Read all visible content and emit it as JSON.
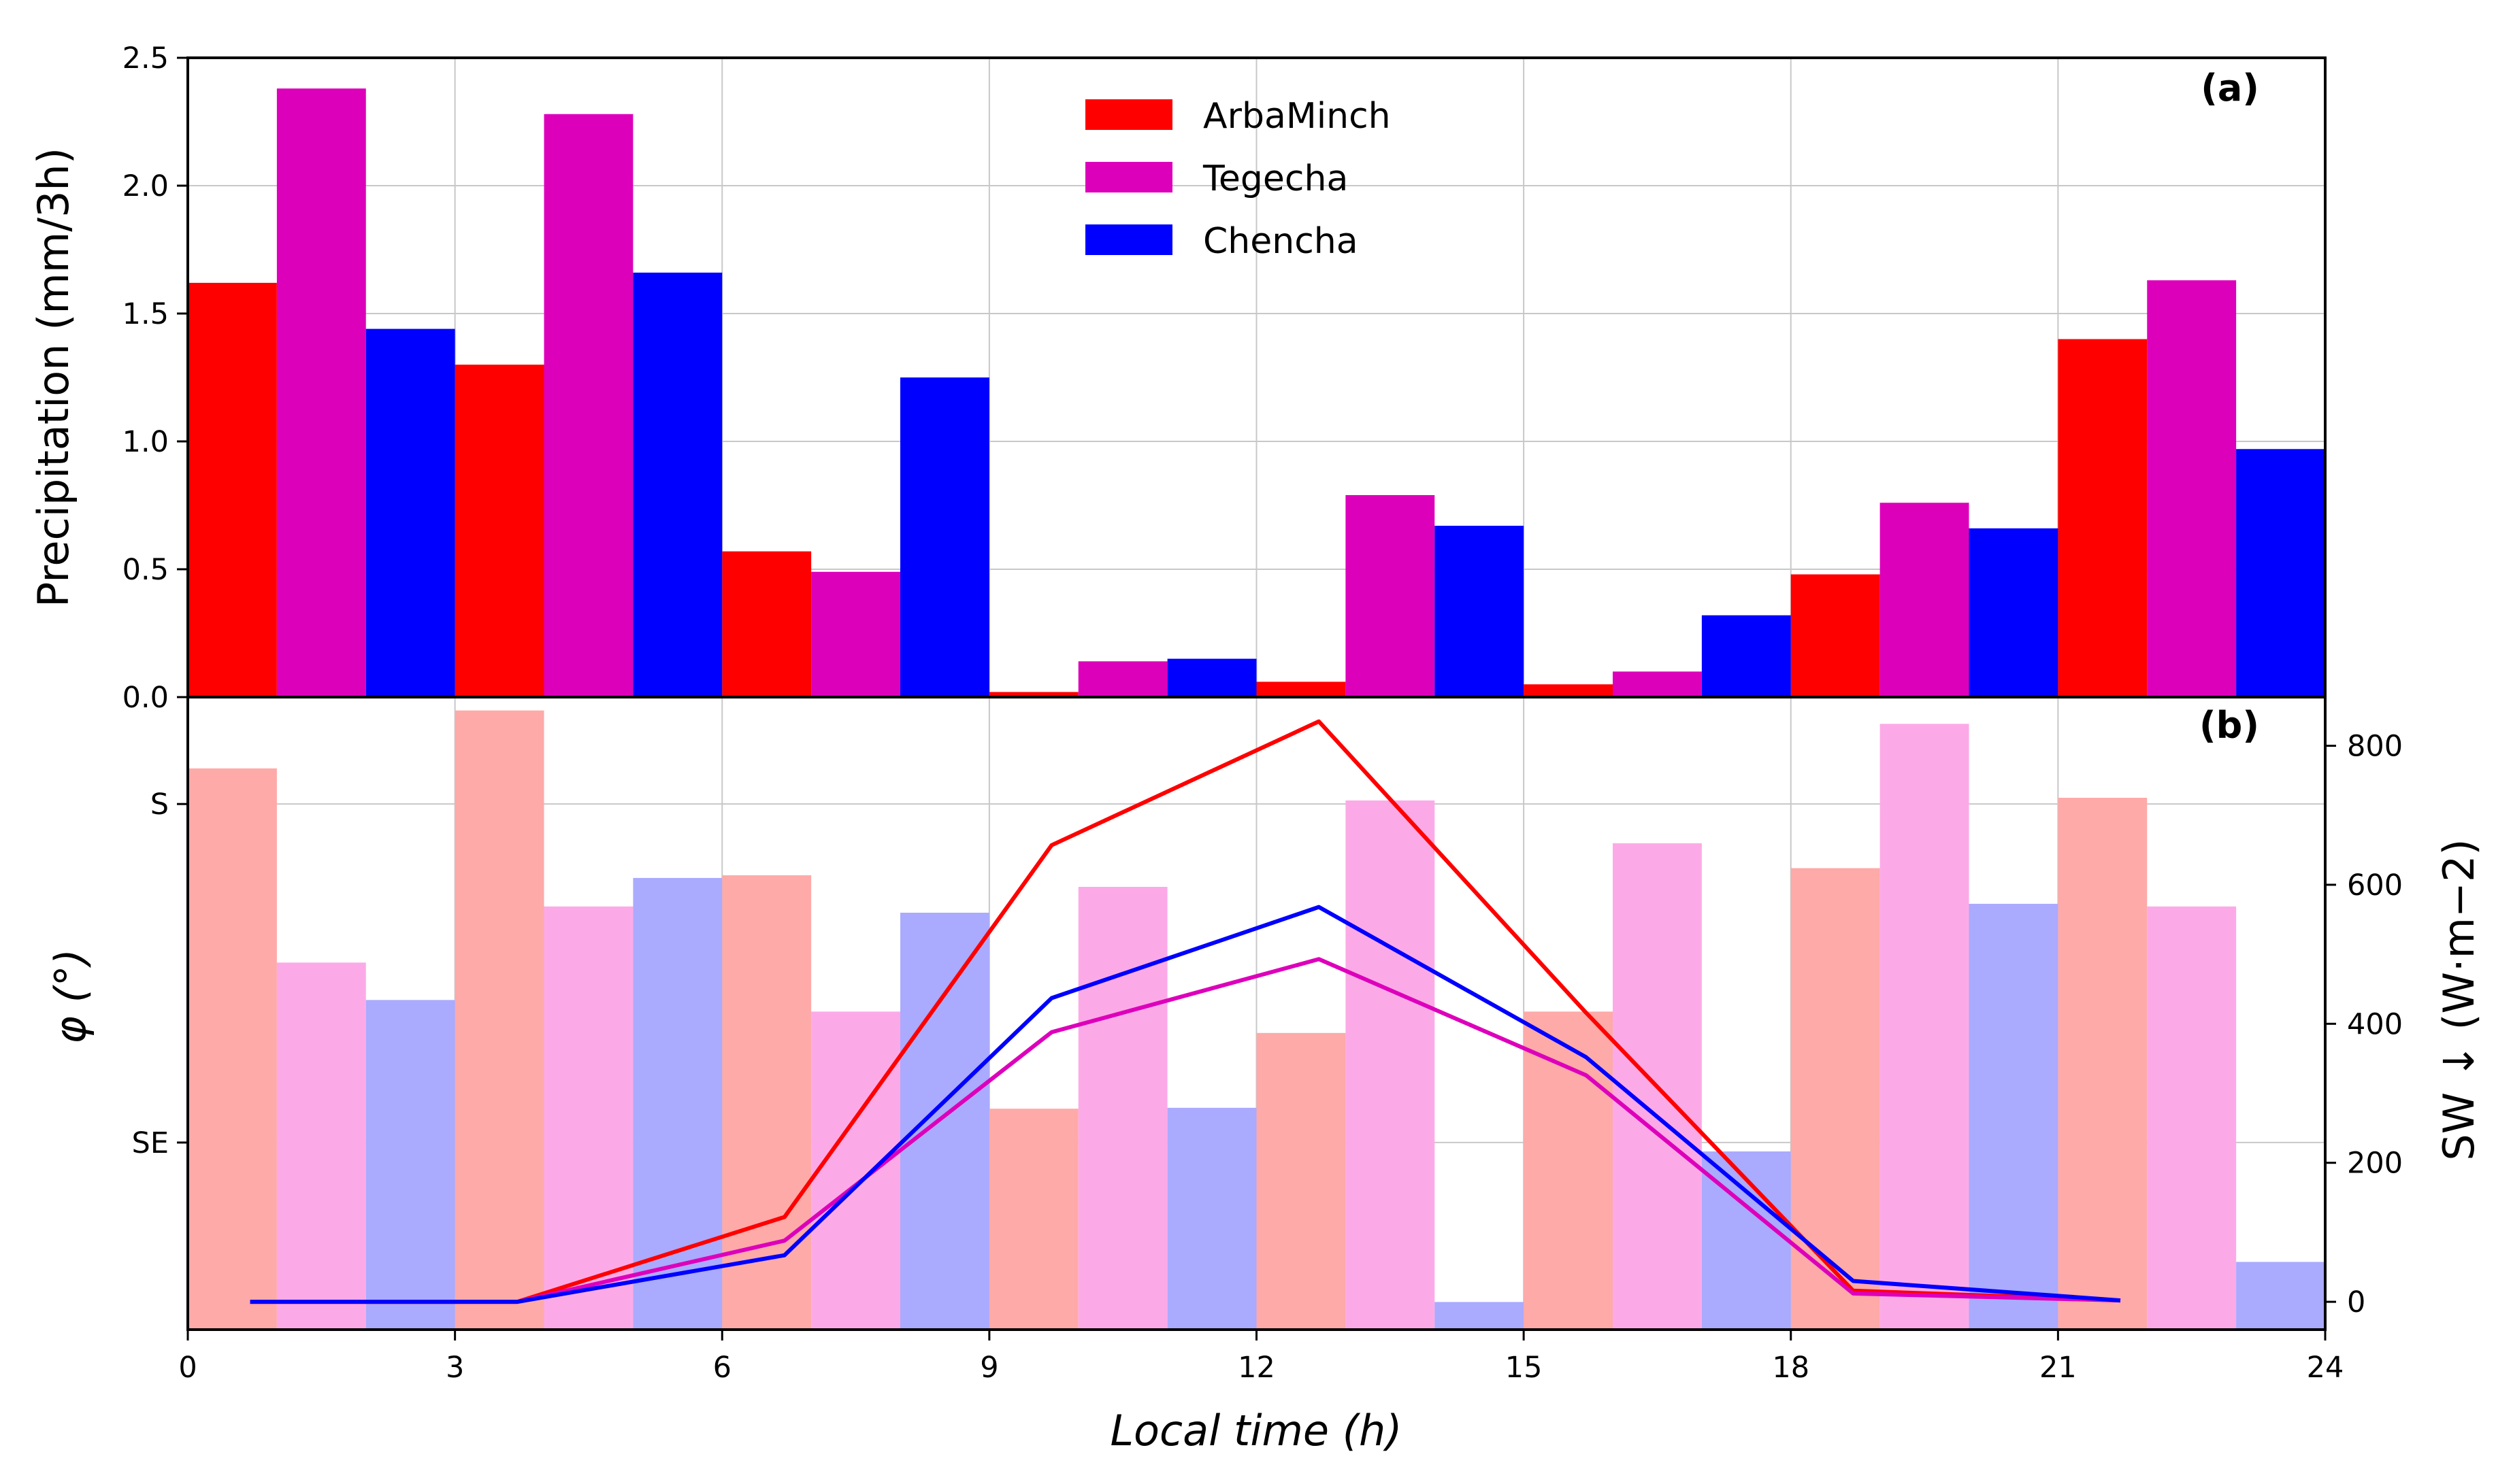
{
  "chart_data": [
    {
      "panel_label": "(a)",
      "type": "bar",
      "ylabel": "Precipitation (mm/3h)",
      "ylim": [
        0.0,
        2.5
      ],
      "yticks": [
        0.0,
        0.5,
        1.0,
        1.5,
        2.0,
        2.5
      ],
      "ytick_labels": [
        "0.0",
        "0.5",
        "1.0",
        "1.5",
        "2.0",
        "2.5"
      ],
      "xlim": [
        0,
        24
      ],
      "grid": true,
      "legend_position": "top-center",
      "series": [
        {
          "name": "ArbaMinch",
          "color": "#ff0000",
          "x": [
            0,
            3,
            6,
            9,
            12,
            15,
            18,
            21
          ],
          "values": [
            1.62,
            1.3,
            0.57,
            0.02,
            0.06,
            0.05,
            0.48,
            1.4
          ]
        },
        {
          "name": "Tegecha",
          "color": "#dd00bb",
          "x": [
            1,
            4,
            7,
            10,
            13,
            16,
            19,
            22
          ],
          "values": [
            2.38,
            2.28,
            0.49,
            0.14,
            0.79,
            0.1,
            0.76,
            1.63
          ]
        },
        {
          "name": "Chencha",
          "color": "#0000ff",
          "x": [
            2,
            5,
            8,
            11,
            14,
            17,
            20,
            23
          ],
          "values": [
            1.44,
            1.66,
            1.25,
            0.15,
            0.67,
            0.32,
            0.66,
            0.97
          ]
        }
      ]
    },
    {
      "panel_label": "(b)",
      "type": "bar+line",
      "xlabel": "Local time (h)",
      "xlim": [
        0,
        24
      ],
      "xticks": [
        0,
        3,
        6,
        9,
        12,
        15,
        18,
        21,
        24
      ],
      "xtick_labels": [
        "0",
        "3",
        "6",
        "9",
        "12",
        "15",
        "18",
        "21",
        "24"
      ],
      "ylabel_left": "φ (°)",
      "ylim_left": [
        99,
        170
      ],
      "yticks_left": [
        120,
        158
      ],
      "ytick_labels_left": [
        "SE",
        "S"
      ],
      "ylabel_right": "SW ↓ (W·m−2)",
      "ylim_right": [
        -40,
        870
      ],
      "yticks_right": [
        0,
        200,
        400,
        600,
        800
      ],
      "ytick_labels_right": [
        "0",
        "200",
        "400",
        "600",
        "800"
      ],
      "bars": [
        {
          "name": "ArbaMinch",
          "color": "#fdaaa9",
          "x": [
            0,
            3,
            6,
            9,
            12,
            15,
            18,
            21
          ],
          "values": [
            162.0,
            168.5,
            150.0,
            123.8,
            132.3,
            134.7,
            150.8,
            158.7
          ]
        },
        {
          "name": "Tegecha",
          "color": "#fcaae7",
          "x": [
            1,
            4,
            7,
            10,
            13,
            16,
            19,
            22
          ],
          "values": [
            140.2,
            146.5,
            134.7,
            148.7,
            158.4,
            153.6,
            167.0,
            146.5
          ]
        },
        {
          "name": "Chencha",
          "color": "#aaaafe",
          "x": [
            2,
            5,
            8,
            11,
            14,
            17,
            20,
            23
          ],
          "values": [
            136.0,
            149.7,
            145.8,
            123.9,
            102.1,
            119.0,
            146.8,
            106.6
          ]
        }
      ],
      "lines": [
        {
          "name": "ArbaMinch",
          "color": "#ff0000",
          "x": [
            0.7,
            3.7,
            6.7,
            9.7,
            12.7,
            15.7,
            18.7,
            21.7
          ],
          "values": [
            0,
            0,
            122,
            657,
            835,
            416,
            16,
            2
          ]
        },
        {
          "name": "Tegecha",
          "color": "#dd00bb",
          "x": [
            0.7,
            3.7,
            6.7,
            9.7,
            12.7,
            15.7,
            18.7,
            21.7
          ],
          "values": [
            0,
            0,
            88,
            388,
            493,
            326,
            12,
            2
          ]
        },
        {
          "name": "Chencha",
          "color": "#0000ff",
          "x": [
            0.7,
            3.7,
            6.7,
            9.7,
            12.7,
            15.7,
            18.7,
            21.7
          ],
          "values": [
            0,
            0,
            67,
            437,
            568,
            352,
            30,
            2
          ]
        }
      ]
    }
  ]
}
